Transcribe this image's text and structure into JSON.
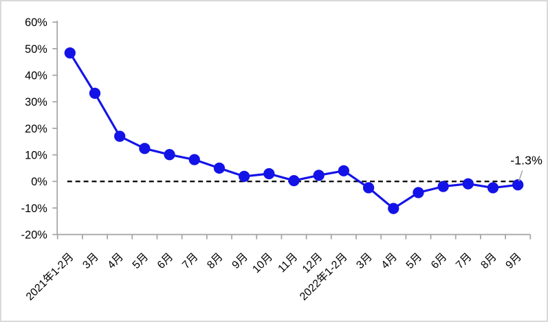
{
  "chart_data": {
    "type": "line",
    "title": "",
    "xlabel": "",
    "ylabel": "",
    "unit": "%",
    "categories": [
      "2021年1-2月",
      "3月",
      "4月",
      "5月",
      "6月",
      "7月",
      "8月",
      "9月",
      "10月",
      "11月",
      "12月",
      "2022年1-2月",
      "3月",
      "4月",
      "5月",
      "6月",
      "7月",
      "8月",
      "9月"
    ],
    "values": [
      48.4,
      33.2,
      17.0,
      12.4,
      10.1,
      8.2,
      5.0,
      1.9,
      2.9,
      0.3,
      2.3,
      4.0,
      -2.4,
      -10.2,
      -4.2,
      -1.9,
      -0.9,
      -2.4,
      -1.3
    ],
    "ylim": [
      -20,
      60
    ],
    "y_ticks": [
      60,
      50,
      40,
      30,
      20,
      10,
      0,
      -10,
      -20
    ],
    "y_tick_labels": [
      "60%",
      "50%",
      "40%",
      "30%",
      "20%",
      "10%",
      "0%",
      "-10%",
      "-20%"
    ],
    "x_tick_rotation_deg": -45,
    "grid": false,
    "legend_position": "none",
    "zero_reference_line": {
      "shown": true,
      "style": "dashed",
      "color": "#000000"
    },
    "annotation": {
      "text": "-1.3%",
      "index": 18
    },
    "colors": {
      "series": "#1313e8",
      "marker": "#1313e8",
      "axis": "#a6a6a6",
      "tick_label": "#000000",
      "annotation_text": "#000000",
      "annotation_leader": "#a6a6a6",
      "frame_border": "#d9d9d9",
      "background": "#ffffff"
    }
  }
}
